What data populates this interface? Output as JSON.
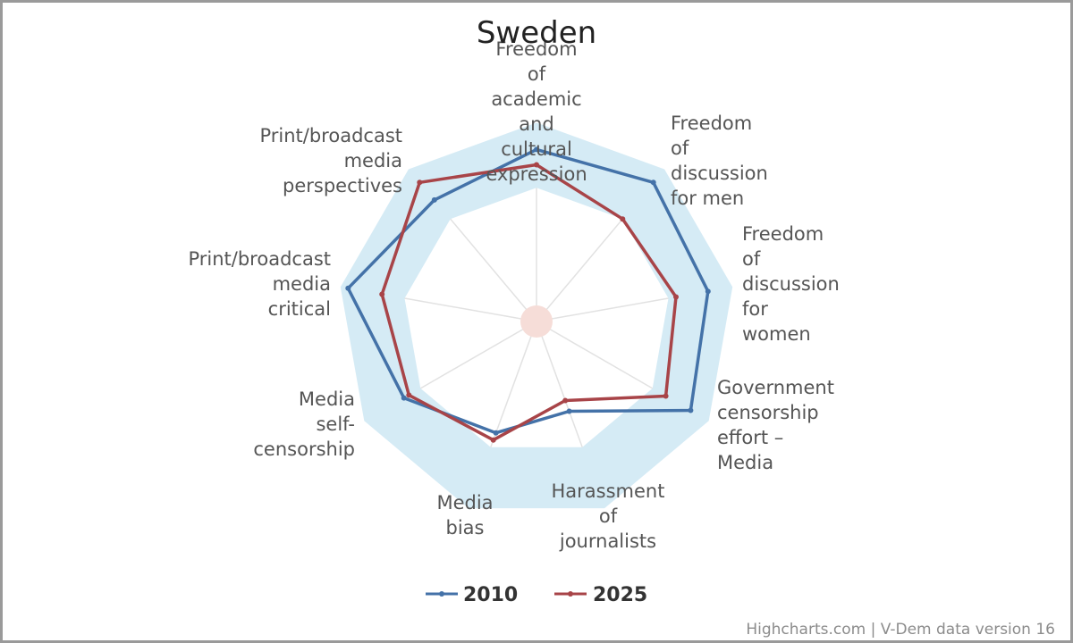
{
  "chart_data": {
    "type": "radar",
    "title": "Sweden",
    "categories": [
      "Freedom of academic and cultural expression",
      "Freedom of discussion for men",
      "Freedom of discussion for women",
      "Government censorship effort - Media",
      "Harassment of journalists",
      "Media bias",
      "Media self-censorship",
      "Print/broadcast media critical",
      "Print/broadcast media perspectives"
    ],
    "category_label_lines": [
      [
        "Freedom",
        "of",
        "academic",
        "and",
        "cultural",
        "expression"
      ],
      [
        "Freedom",
        "of",
        "discussion",
        "for men"
      ],
      [
        "Freedom",
        "of",
        "discussion",
        "for",
        "women"
      ],
      [
        "Government",
        "censorship",
        "effort –",
        "Media"
      ],
      [
        "Harassment",
        "of",
        "journalists"
      ],
      [
        "Media",
        "bias"
      ],
      [
        "Media",
        "self-",
        "censorship"
      ],
      [
        "Print/broadcast",
        "media",
        "critical"
      ],
      [
        "Print/broadcast",
        "media",
        "perspectives"
      ]
    ],
    "series": [
      {
        "name": "2010",
        "color": "#4472a8",
        "values": [
          0.9,
          0.95,
          0.91,
          0.93,
          0.5,
          0.62,
          0.8,
          1.0,
          0.83
        ]
      },
      {
        "name": "2025",
        "color": "#a84448",
        "values": [
          0.82,
          0.7,
          0.74,
          0.78,
          0.44,
          0.66,
          0.77,
          0.82,
          0.95
        ]
      }
    ],
    "range_band": {
      "min": 0.7,
      "max": 1.04,
      "color": "#d5ebf5"
    },
    "center_marker_color": "#f6ddd8",
    "legend_position": "bottom-center"
  },
  "credits": "Highcharts.com | V-Dem data version 16"
}
